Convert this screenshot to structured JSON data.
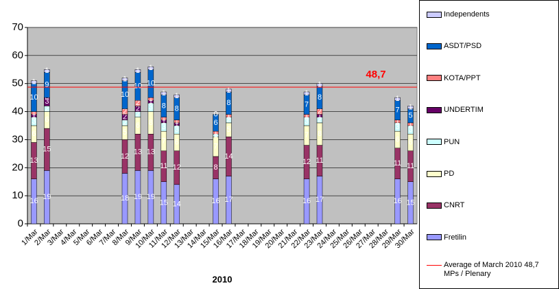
{
  "chart_data": {
    "type": "stacked_bar",
    "x_label": "2010",
    "categories": [
      "1/Mar",
      "2/Mar",
      "3/Mar",
      "4/Mar",
      "5/Mar",
      "6/Mar",
      "7/Mar",
      "8/Mar",
      "9/Mar",
      "10/Mar",
      "11/Mar",
      "12/Mar",
      "13/Mar",
      "14/Mar",
      "15/Mar",
      "16/Mar",
      "17/Mar",
      "18/Mar",
      "19/Mar",
      "20/Mar",
      "21/Mar",
      "22/Mar",
      "23/Mar",
      "24/Mar",
      "25/Mar",
      "26/Mar",
      "27/Mar",
      "28/Mar",
      "29/Mar",
      "30/Mar"
    ],
    "series": [
      {
        "name": "Fretilin",
        "color": "#9999ff",
        "values": [
          16,
          19,
          null,
          null,
          null,
          null,
          null,
          18,
          19,
          19,
          15,
          14,
          null,
          null,
          16,
          17,
          null,
          null,
          null,
          null,
          null,
          16,
          17,
          null,
          null,
          null,
          null,
          null,
          16,
          15
        ]
      },
      {
        "name": "CNRT",
        "color": "#993366",
        "values": [
          13,
          15,
          null,
          null,
          null,
          null,
          null,
          12,
          13,
          13,
          11,
          12,
          null,
          null,
          8,
          14,
          null,
          null,
          null,
          null,
          null,
          12,
          11,
          null,
          null,
          null,
          null,
          null,
          11,
          11
        ]
      },
      {
        "name": "PD",
        "color": "#ffffcc",
        "values": [
          6,
          6,
          null,
          null,
          null,
          null,
          null,
          5,
          6,
          8,
          7,
          6,
          null,
          null,
          7,
          5,
          null,
          null,
          null,
          null,
          null,
          7,
          8,
          null,
          null,
          null,
          null,
          null,
          6,
          6
        ]
      },
      {
        "name": "PUN",
        "color": "#ccffff",
        "values": [
          3,
          2,
          null,
          null,
          null,
          null,
          null,
          2,
          2,
          3,
          3,
          3,
          null,
          null,
          1,
          2,
          null,
          null,
          null,
          null,
          null,
          3,
          2,
          null,
          null,
          null,
          null,
          null,
          3,
          3
        ]
      },
      {
        "name": "UNDERTIM",
        "color": "#660066",
        "values": [
          1,
          3,
          null,
          null,
          null,
          null,
          null,
          2,
          2,
          1,
          1,
          1,
          null,
          null,
          0,
          0,
          null,
          null,
          null,
          null,
          null,
          0,
          1,
          null,
          null,
          null,
          null,
          null,
          0,
          0
        ]
      },
      {
        "name": "KOTA/PPT",
        "color": "#ff8080",
        "values": [
          1,
          0,
          null,
          null,
          null,
          null,
          null,
          2,
          2,
          1,
          1,
          1,
          null,
          null,
          1,
          1,
          null,
          null,
          null,
          null,
          null,
          1,
          2,
          null,
          null,
          null,
          null,
          null,
          1,
          1
        ]
      },
      {
        "name": "ASDT/PSD",
        "color": "#0066cc",
        "values": [
          10,
          9,
          null,
          null,
          null,
          null,
          null,
          10,
          10,
          10,
          8,
          8,
          null,
          null,
          6,
          8,
          null,
          null,
          null,
          null,
          null,
          7,
          8,
          null,
          null,
          null,
          null,
          null,
          7,
          5
        ]
      },
      {
        "name": "Independents",
        "color": "#ccccff",
        "values": [
          1,
          1,
          null,
          null,
          null,
          null,
          null,
          1,
          1,
          1,
          1,
          1,
          null,
          null,
          0,
          1,
          null,
          null,
          null,
          null,
          null,
          1,
          1,
          null,
          null,
          null,
          null,
          null,
          1,
          1
        ]
      }
    ],
    "reference_line": {
      "value": 48.7,
      "value_label": "48,7",
      "name": "Average of  March 2010 48,7 MPs / Plenary",
      "color": "#ff0000"
    },
    "ylim": [
      0,
      70
    ],
    "yticks": [
      0,
      10,
      20,
      30,
      40,
      50,
      60,
      70
    ],
    "grid": true
  }
}
